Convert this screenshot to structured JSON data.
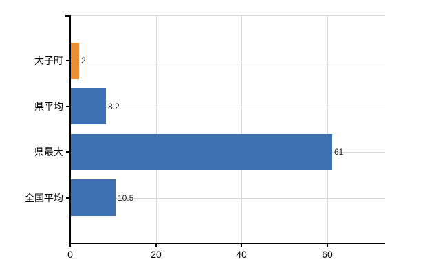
{
  "chart_data": {
    "type": "bar",
    "orientation": "horizontal",
    "title": "",
    "xlabel": "",
    "ylabel": "",
    "categories": [
      "大子町",
      "県平均",
      "県最大",
      "全国平均"
    ],
    "values": [
      2,
      8.2,
      61,
      10.5
    ],
    "value_labels": [
      "2",
      "8.2",
      "61",
      "10.5"
    ],
    "bar_colors": [
      "#EC8C33",
      "#3D70B0",
      "#3D70B0",
      "#3D70B0"
    ],
    "x_tick_values": [
      0,
      20,
      40,
      60
    ],
    "x_tick_labels": [
      "0",
      "20",
      "40",
      "60"
    ],
    "xlim": [
      0,
      73.5
    ],
    "grid": true,
    "legend": false,
    "axis_color": "#000000",
    "grid_color": "#d8d8d8",
    "value_label_color": "#1a1a1a",
    "background_color": "#ffffff"
  }
}
